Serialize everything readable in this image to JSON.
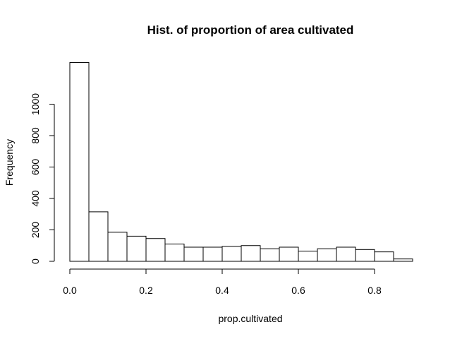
{
  "chart_data": {
    "type": "bar",
    "title": "Hist. of proportion of area cultivated",
    "xlabel": "prop.cultivated",
    "ylabel": "Frequency",
    "bin_width": 0.05,
    "bins_start": [
      0.0,
      0.05,
      0.1,
      0.15,
      0.2,
      0.25,
      0.3,
      0.35,
      0.4,
      0.45,
      0.5,
      0.55,
      0.6,
      0.65,
      0.7,
      0.75,
      0.8,
      0.85
    ],
    "values": [
      1265,
      315,
      185,
      160,
      145,
      110,
      90,
      90,
      95,
      100,
      80,
      90,
      65,
      80,
      90,
      75,
      60,
      15
    ],
    "xlim": [
      0,
      0.95
    ],
    "ylim": [
      0,
      1265
    ],
    "x_ticks": [
      {
        "value": 0.0,
        "label": "0.0"
      },
      {
        "value": 0.2,
        "label": "0.2"
      },
      {
        "value": 0.4,
        "label": "0.4"
      },
      {
        "value": 0.6,
        "label": "0.6"
      },
      {
        "value": 0.8,
        "label": "0.8"
      }
    ],
    "y_ticks": [
      {
        "value": 0,
        "label": "0"
      },
      {
        "value": 200,
        "label": "200"
      },
      {
        "value": 400,
        "label": "400"
      },
      {
        "value": 600,
        "label": "600"
      },
      {
        "value": 800,
        "label": "800"
      },
      {
        "value": 1000,
        "label": "1000"
      }
    ],
    "grid": false,
    "legend": "none"
  }
}
